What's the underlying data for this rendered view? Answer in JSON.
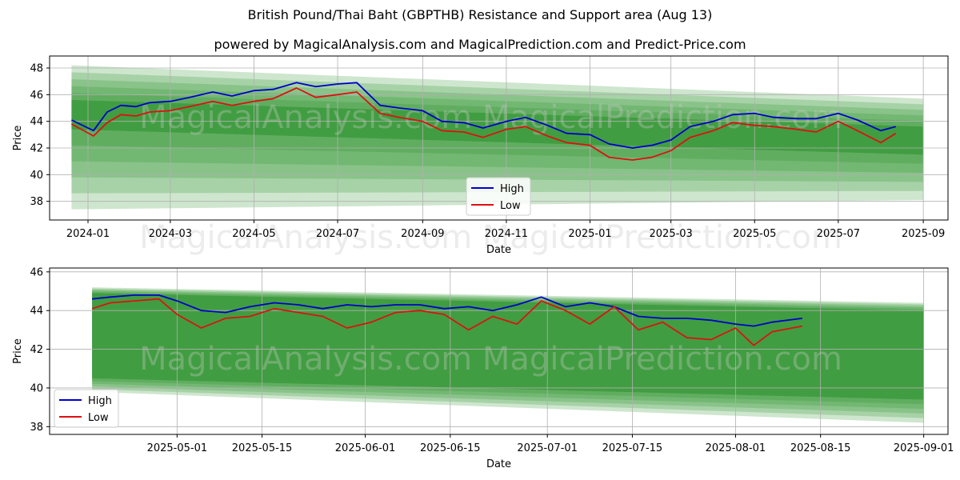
{
  "title": "British Pound/Thai Baht (GBPTHB) Resistance and Support area (Aug 13)",
  "subtitle": "powered by MagicalAnalysis.com and MagicalPrediction.com and Predict-Price.com",
  "watermarks": [
    "MagicalAnalysis.com",
    "MagicalPrediction.com"
  ],
  "colors": {
    "high": "#0000cc",
    "low": "#dd1111",
    "band": "#228b22"
  },
  "chart_data": [
    {
      "type": "line",
      "xlabel": "Date",
      "ylabel": "Price",
      "ylim": [
        36.6,
        48.9
      ],
      "xlim": [
        "2023-12-04",
        "2025-09-19"
      ],
      "xticks": [
        "2024-01",
        "2024-03",
        "2024-05",
        "2024-07",
        "2024-09",
        "2024-11",
        "2025-01",
        "2025-03",
        "2025-05",
        "2025-07",
        "2025-09"
      ],
      "yticks": [
        38,
        40,
        42,
        44,
        46,
        48
      ],
      "grid": true,
      "legend": {
        "position": "lower-center",
        "entries": [
          "High",
          "Low"
        ]
      },
      "band": {
        "x": [
          "2023-12-20",
          "2025-09-01"
        ],
        "upper_outer": [
          48.2,
          45.7
        ],
        "upper_inner": [
          45.6,
          43.6
        ],
        "lower_inner": [
          43.4,
          41.5
        ],
        "lower_outer": [
          37.4,
          38.1
        ]
      },
      "series": [
        {
          "name": "High",
          "x": [
            "2023-12-20",
            "2024-01-05",
            "2024-01-15",
            "2024-01-25",
            "2024-02-05",
            "2024-02-15",
            "2024-03-01",
            "2024-03-15",
            "2024-04-01",
            "2024-04-15",
            "2024-05-01",
            "2024-05-15",
            "2024-06-01",
            "2024-06-15",
            "2024-07-01",
            "2024-07-15",
            "2024-08-01",
            "2024-08-15",
            "2024-09-01",
            "2024-09-15",
            "2024-10-01",
            "2024-10-15",
            "2024-11-01",
            "2024-11-15",
            "2024-12-01",
            "2024-12-15",
            "2025-01-01",
            "2025-01-15",
            "2025-02-01",
            "2025-02-15",
            "2025-03-01",
            "2025-03-15",
            "2025-04-01",
            "2025-04-15",
            "2025-05-01",
            "2025-05-15",
            "2025-06-01",
            "2025-06-15",
            "2025-07-01",
            "2025-07-15",
            "2025-08-01",
            "2025-08-12"
          ],
          "values": [
            44.1,
            43.3,
            44.7,
            45.2,
            45.1,
            45.4,
            45.5,
            45.8,
            46.2,
            45.9,
            46.3,
            46.4,
            46.9,
            46.6,
            46.8,
            46.9,
            45.2,
            45.0,
            44.8,
            44.0,
            43.9,
            43.5,
            44.0,
            44.3,
            43.7,
            43.1,
            43.0,
            42.3,
            42.0,
            42.2,
            42.6,
            43.6,
            44.0,
            44.5,
            44.6,
            44.3,
            44.2,
            44.2,
            44.6,
            44.1,
            43.3,
            43.6
          ]
        },
        {
          "name": "Low",
          "x": [
            "2023-12-20",
            "2024-01-05",
            "2024-01-15",
            "2024-01-25",
            "2024-02-05",
            "2024-02-15",
            "2024-03-01",
            "2024-03-15",
            "2024-04-01",
            "2024-04-15",
            "2024-05-01",
            "2024-05-15",
            "2024-06-01",
            "2024-06-15",
            "2024-07-01",
            "2024-07-15",
            "2024-08-01",
            "2024-08-15",
            "2024-09-01",
            "2024-09-15",
            "2024-10-01",
            "2024-10-15",
            "2024-11-01",
            "2024-11-15",
            "2024-12-01",
            "2024-12-15",
            "2025-01-01",
            "2025-01-15",
            "2025-02-01",
            "2025-02-15",
            "2025-03-01",
            "2025-03-15",
            "2025-04-01",
            "2025-04-15",
            "2025-05-01",
            "2025-05-15",
            "2025-06-01",
            "2025-06-15",
            "2025-07-01",
            "2025-07-15",
            "2025-08-01",
            "2025-08-12"
          ],
          "values": [
            43.8,
            42.9,
            43.9,
            44.5,
            44.4,
            44.7,
            44.8,
            45.1,
            45.5,
            45.2,
            45.5,
            45.7,
            46.5,
            45.8,
            46.0,
            46.2,
            44.6,
            44.3,
            44.0,
            43.3,
            43.2,
            42.8,
            43.4,
            43.6,
            42.9,
            42.4,
            42.2,
            41.3,
            41.1,
            41.3,
            41.8,
            42.8,
            43.3,
            43.9,
            43.7,
            43.6,
            43.4,
            43.2,
            44.0,
            43.3,
            42.4,
            43.1
          ]
        }
      ]
    },
    {
      "type": "line",
      "xlabel": "Date",
      "ylabel": "Price",
      "ylim": [
        37.6,
        46.2
      ],
      "xlim": [
        "2025-04-10",
        "2025-09-05"
      ],
      "xticks": [
        "2025-05-01",
        "2025-05-15",
        "2025-06-01",
        "2025-06-15",
        "2025-07-01",
        "2025-07-15",
        "2025-08-01",
        "2025-08-15",
        "2025-09-01"
      ],
      "yticks": [
        38,
        40,
        42,
        44,
        46
      ],
      "grid": true,
      "legend": {
        "position": "lower-left",
        "entries": [
          "High",
          "Low"
        ]
      },
      "band": {
        "x": [
          "2025-04-17",
          "2025-09-01"
        ],
        "upper_outer": [
          45.2,
          44.4
        ],
        "upper_inner": [
          44.9,
          44.0
        ],
        "lower_inner": [
          40.5,
          39.4
        ],
        "lower_outer": [
          39.8,
          38.2
        ]
      },
      "series": [
        {
          "name": "High",
          "x": [
            "2025-04-17",
            "2025-04-20",
            "2025-04-24",
            "2025-04-28",
            "2025-05-01",
            "2025-05-05",
            "2025-05-09",
            "2025-05-13",
            "2025-05-17",
            "2025-05-21",
            "2025-05-25",
            "2025-05-29",
            "2025-06-02",
            "2025-06-06",
            "2025-06-10",
            "2025-06-14",
            "2025-06-18",
            "2025-06-22",
            "2025-06-26",
            "2025-06-30",
            "2025-07-04",
            "2025-07-08",
            "2025-07-12",
            "2025-07-16",
            "2025-07-20",
            "2025-07-24",
            "2025-07-28",
            "2025-08-01",
            "2025-08-04",
            "2025-08-07",
            "2025-08-12"
          ],
          "values": [
            44.6,
            44.7,
            44.8,
            44.8,
            44.5,
            44.0,
            43.9,
            44.2,
            44.4,
            44.3,
            44.1,
            44.3,
            44.2,
            44.3,
            44.3,
            44.1,
            44.2,
            44.0,
            44.3,
            44.7,
            44.2,
            44.4,
            44.2,
            43.7,
            43.6,
            43.6,
            43.5,
            43.3,
            43.2,
            43.4,
            43.6
          ]
        },
        {
          "name": "Low",
          "x": [
            "2025-04-17",
            "2025-04-20",
            "2025-04-24",
            "2025-04-28",
            "2025-05-01",
            "2025-05-05",
            "2025-05-09",
            "2025-05-13",
            "2025-05-17",
            "2025-05-21",
            "2025-05-25",
            "2025-05-29",
            "2025-06-02",
            "2025-06-06",
            "2025-06-10",
            "2025-06-14",
            "2025-06-18",
            "2025-06-22",
            "2025-06-26",
            "2025-06-30",
            "2025-07-04",
            "2025-07-08",
            "2025-07-12",
            "2025-07-16",
            "2025-07-20",
            "2025-07-24",
            "2025-07-28",
            "2025-08-01",
            "2025-08-04",
            "2025-08-07",
            "2025-08-12"
          ],
          "values": [
            44.1,
            44.4,
            44.5,
            44.6,
            43.8,
            43.1,
            43.6,
            43.7,
            44.1,
            43.9,
            43.7,
            43.1,
            43.4,
            43.9,
            44.0,
            43.8,
            43.0,
            43.7,
            43.3,
            44.5,
            44.0,
            43.3,
            44.2,
            43.0,
            43.4,
            42.6,
            42.5,
            43.1,
            42.2,
            42.9,
            43.2
          ]
        }
      ]
    }
  ]
}
